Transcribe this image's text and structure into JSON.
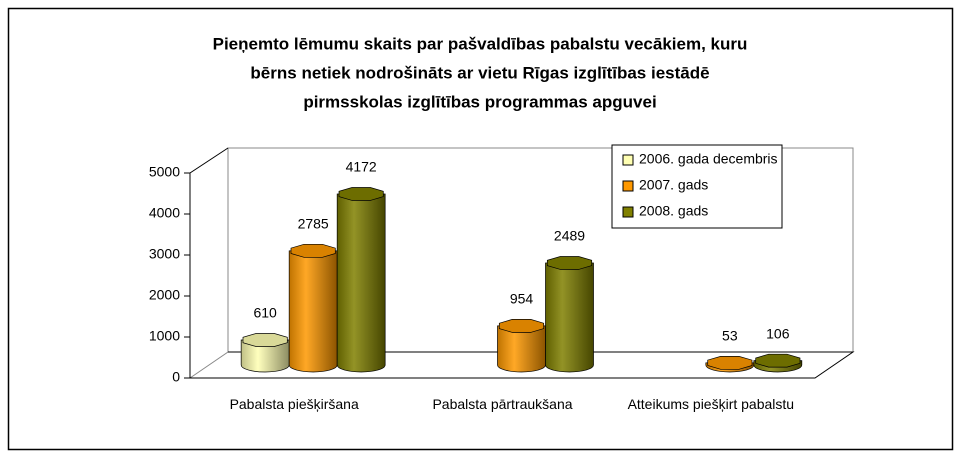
{
  "chart_data": {
    "type": "bar3d",
    "title": [
      "Pieņemto lēmumu skaits par pašvaldības pabalstu vecākiem, kuru",
      "bērns netiek nodrošināts ar vietu Rīgas izglītības iestādē",
      "pirmsskolas izglītības programmas apguvei"
    ],
    "categories": [
      "Pabalsta piešķiršana",
      "Pabalsta pārtraukšana",
      "Atteikums piešķirt pabalstu"
    ],
    "series": [
      {
        "name": "2006. gada decembris",
        "color": "#ffffb3",
        "values": [
          610,
          null,
          null
        ]
      },
      {
        "name": "2007. gads",
        "color": "#ff9900",
        "values": [
          2785,
          954,
          53
        ]
      },
      {
        "name": "2008. gads",
        "color": "#808000",
        "values": [
          4172,
          2489,
          106
        ]
      }
    ],
    "ylim": [
      0,
      5000
    ],
    "yticks": [
      0,
      1000,
      2000,
      3000,
      4000,
      5000
    ],
    "grid": false,
    "legend": "top-right"
  }
}
